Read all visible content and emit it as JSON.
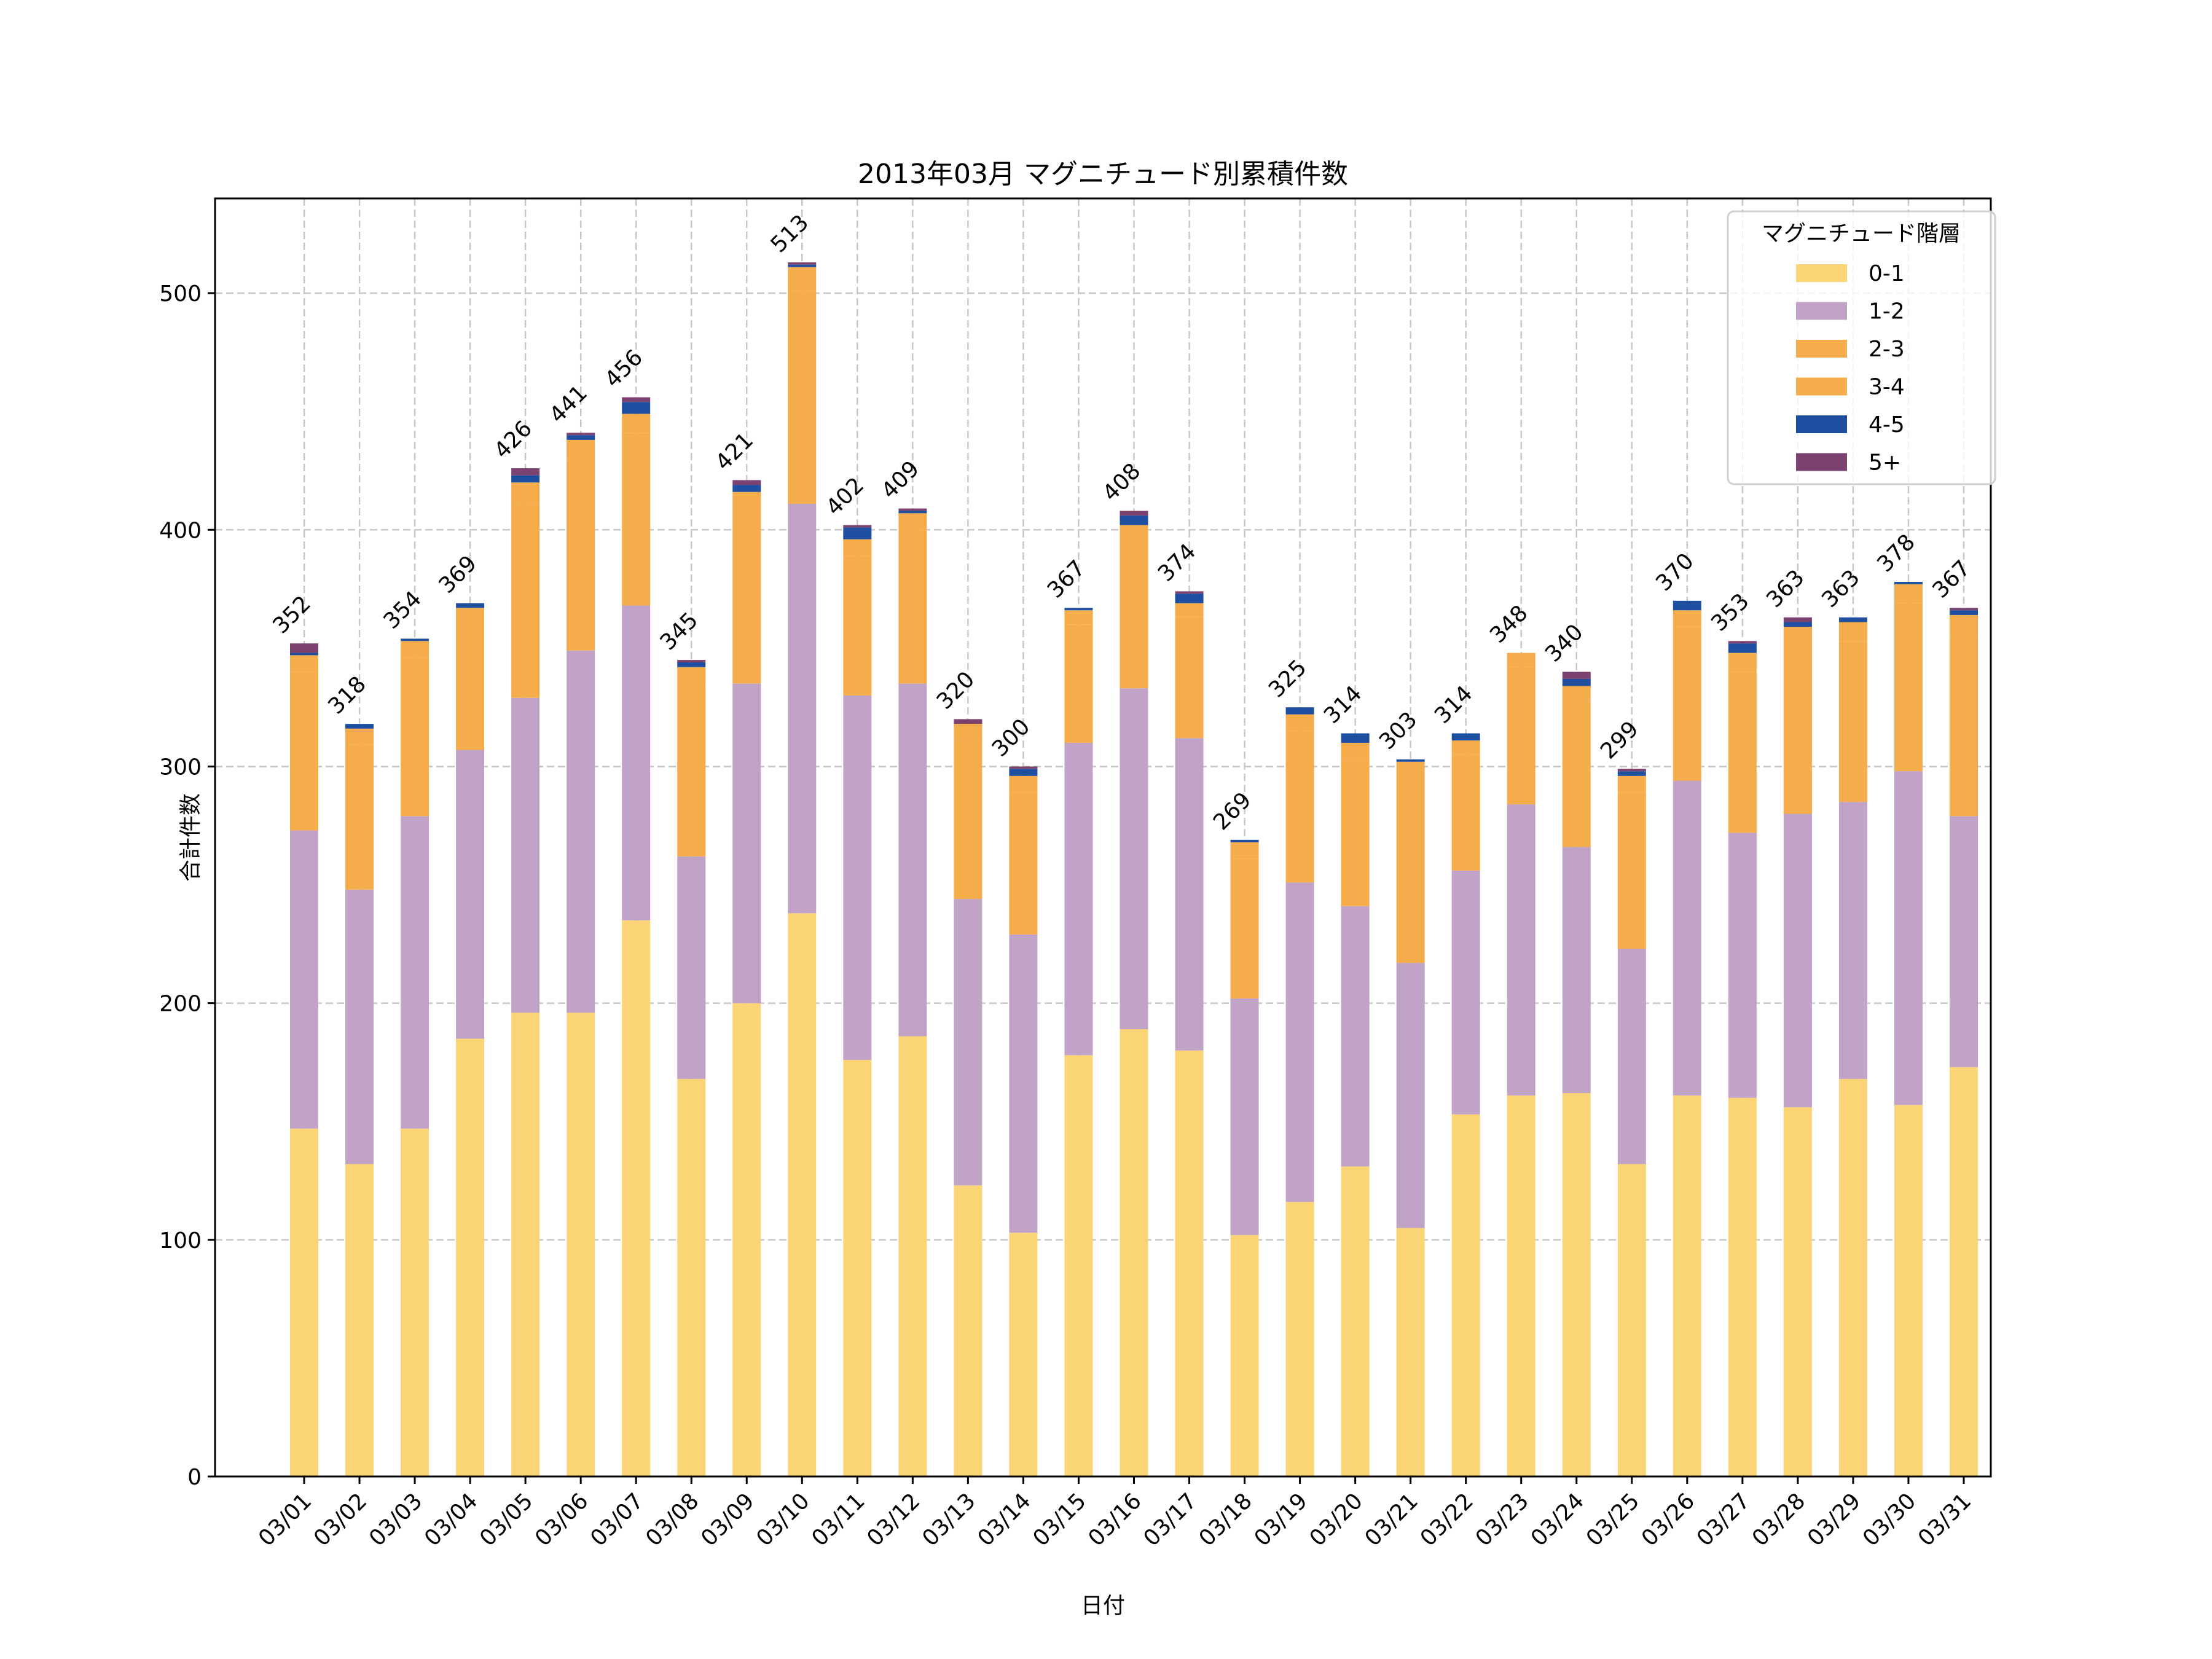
{
  "chart_data": {
    "type": "bar",
    "stacked": true,
    "title": "2013年03月 マグニチュード別累積件数",
    "xlabel": "日付",
    "ylabel": "合計件数",
    "ylim": [
      0,
      540
    ],
    "yticks": [
      0,
      100,
      200,
      300,
      400,
      500
    ],
    "grid": true,
    "legend": {
      "title": "マグニチュード階層",
      "placement": "top-right"
    },
    "categories": [
      "03/01",
      "03/02",
      "03/03",
      "03/04",
      "03/05",
      "03/06",
      "03/07",
      "03/08",
      "03/09",
      "03/10",
      "03/11",
      "03/12",
      "03/13",
      "03/14",
      "03/15",
      "03/16",
      "03/17",
      "03/18",
      "03/19",
      "03/20",
      "03/21",
      "03/22",
      "03/23",
      "03/24",
      "03/25",
      "03/26",
      "03/27",
      "03/28",
      "03/29",
      "03/30",
      "03/31"
    ],
    "series": [
      {
        "name": "0-1",
        "color": "#FBD476",
        "values": [
          147,
          132,
          147,
          185,
          196,
          196,
          235,
          168,
          200,
          238,
          176,
          186,
          123,
          103,
          178,
          189,
          180,
          102,
          116,
          131,
          105,
          153,
          161,
          162,
          132,
          161,
          160,
          156,
          168,
          157,
          173
        ]
      },
      {
        "name": "1-2",
        "color": "#C0A3C7",
        "values": [
          126,
          116,
          132,
          122,
          133,
          153,
          133,
          94,
          135,
          173,
          154,
          149,
          121,
          126,
          132,
          144,
          132,
          100,
          135,
          110,
          112,
          103,
          123,
          104,
          91,
          133,
          112,
          124,
          117,
          141,
          106
        ]
      },
      {
        "name": "2-3",
        "color": "#F5AC4B",
        "values": [
          67,
          61,
          67,
          54,
          82,
          80,
          73,
          72,
          73,
          90,
          59,
          65,
          67,
          60,
          50,
          62,
          51,
          59,
          64,
          62,
          76,
          49,
          58,
          61,
          66,
          65,
          68,
          71,
          68,
          71,
          76
        ]
      },
      {
        "name": "3-4",
        "color": "#F5AC4B",
        "values": [
          7,
          7,
          7,
          6,
          9,
          9,
          8,
          8,
          8,
          10,
          7,
          7,
          7,
          7,
          6,
          7,
          6,
          7,
          7,
          7,
          9,
          6,
          6,
          7,
          7,
          7,
          8,
          8,
          8,
          8,
          9
        ]
      },
      {
        "name": "4-5",
        "color": "#1F4FA0",
        "values": [
          1,
          2,
          1,
          2,
          3,
          2,
          5,
          2,
          3,
          1,
          5,
          1,
          0,
          3,
          1,
          4,
          4,
          1,
          3,
          4,
          1,
          3,
          0,
          3,
          2,
          4,
          4,
          2,
          2,
          1,
          2
        ]
      },
      {
        "name": "5+",
        "color": "#7B416F",
        "values": [
          4,
          0,
          0,
          0,
          3,
          1,
          2,
          1,
          2,
          1,
          1,
          1,
          2,
          1,
          0,
          2,
          1,
          0,
          0,
          0,
          0,
          0,
          0,
          3,
          1,
          0,
          1,
          2,
          0,
          0,
          1
        ]
      }
    ],
    "totals": [
      352,
      318,
      354,
      369,
      426,
      441,
      456,
      345,
      421,
      513,
      402,
      409,
      320,
      300,
      367,
      408,
      374,
      269,
      325,
      314,
      303,
      314,
      348,
      340,
      299,
      370,
      353,
      363,
      363,
      378,
      367
    ]
  }
}
